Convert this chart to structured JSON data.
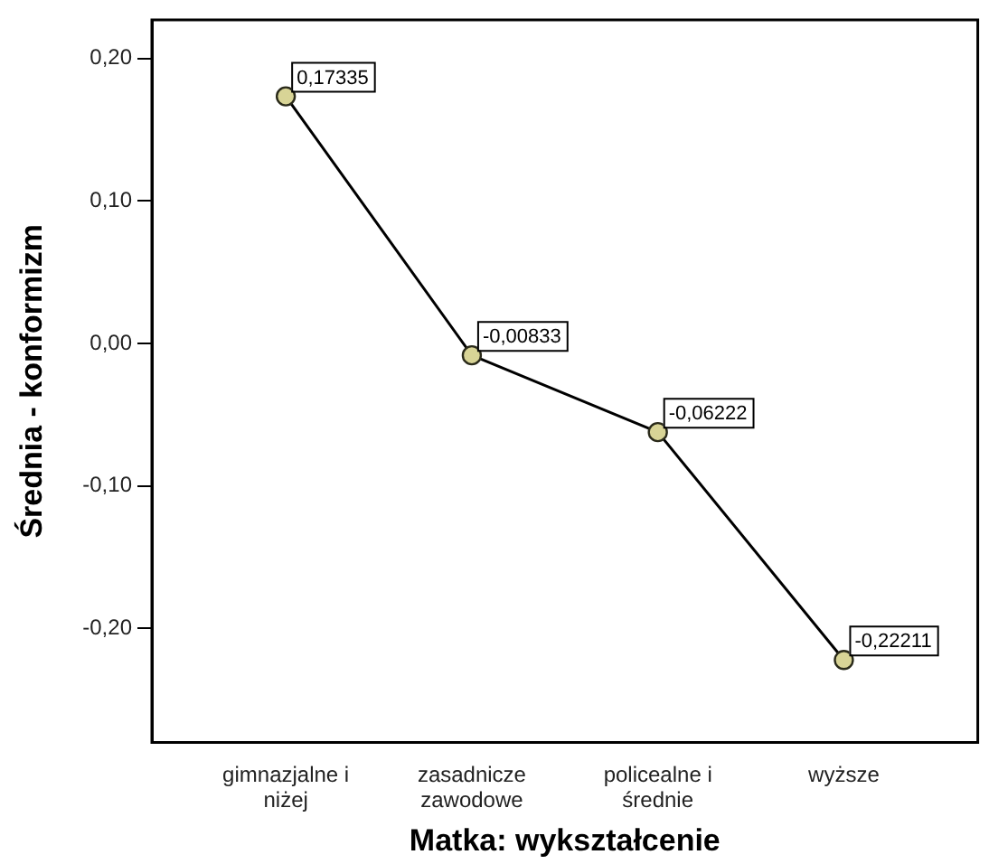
{
  "chart_data": {
    "type": "line",
    "xlabel": "Matka: wykształcenie",
    "ylabel": "Średnia - konformizm",
    "categories": [
      "gimnazjalne i niżej",
      "zasadnicze zawodowe",
      "policealne i średnie",
      "wyższe"
    ],
    "series": [
      {
        "color": "#000000",
        "values": [
          0.17335,
          -0.00833,
          -0.06222,
          -0.22211
        ],
        "value_labels": [
          "0,17335",
          "-0,00833",
          "-0,06222",
          "-0,22211"
        ]
      }
    ],
    "ylim": [
      -0.28,
      0.227
    ],
    "yticks": [
      {
        "value": 0.2,
        "label": "0,20"
      },
      {
        "value": 0.1,
        "label": "0,10"
      },
      {
        "value": 0,
        "label": "0,00"
      },
      {
        "value": -0.1,
        "label": "-0,10"
      },
      {
        "value": -0.2,
        "label": "-0,20"
      }
    ],
    "grid": false,
    "legend": false,
    "marker": "circle",
    "line_style": "solid"
  }
}
